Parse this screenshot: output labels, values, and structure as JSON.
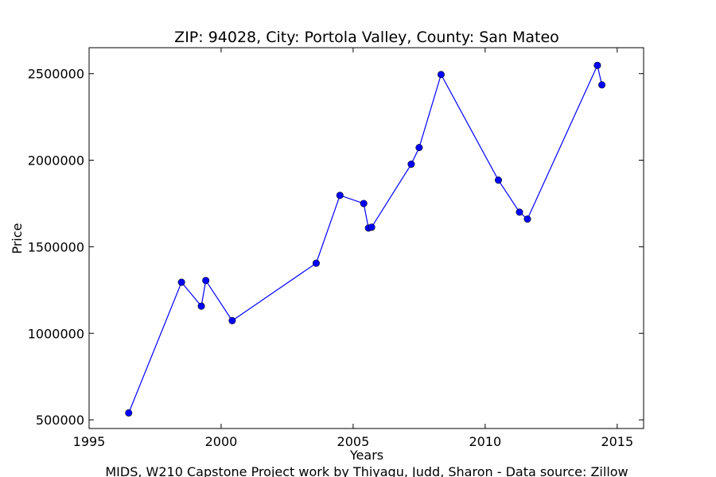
{
  "chart_data": {
    "type": "line",
    "title": "ZIP: 94028, City: Portola Valley, County: San Mateo",
    "xlabel": "Years",
    "ylabel": "Price",
    "caption": "MIDS, W210 Capstone Project work by Thiyagu, Judd, Sharon  -  Data source: Zillow",
    "xlim": [
      1995,
      2016
    ],
    "ylim": [
      450000,
      2650000
    ],
    "x_ticks": [
      1995,
      2000,
      2005,
      2010,
      2015
    ],
    "y_ticks": [
      500000,
      1000000,
      1500000,
      2000000,
      2500000
    ],
    "grid": false,
    "series": [
      {
        "color": "#0000ff",
        "x": [
          1996.5,
          1998.5,
          1999.25,
          1999.42,
          2000.42,
          2003.6,
          2004.5,
          2005.4,
          2005.58,
          2005.7,
          2007.2,
          2007.5,
          2008.33,
          2010.5,
          2011.3,
          2011.6,
          2014.25,
          2014.42
        ],
        "y": [
          540000,
          1295000,
          1157000,
          1305000,
          1073000,
          1405000,
          1797000,
          1750000,
          1608000,
          1613000,
          1977000,
          2073000,
          2495000,
          1885000,
          1700000,
          1660000,
          2548000,
          2435000
        ]
      }
    ]
  }
}
